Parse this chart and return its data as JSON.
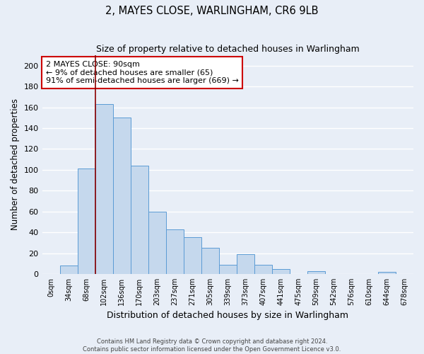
{
  "title1": "2, MAYES CLOSE, WARLINGHAM, CR6 9LB",
  "title2": "Size of property relative to detached houses in Warlingham",
  "xlabel": "Distribution of detached houses by size in Warlingham",
  "ylabel": "Number of detached properties",
  "bar_labels": [
    "0sqm",
    "34sqm",
    "68sqm",
    "102sqm",
    "136sqm",
    "170sqm",
    "203sqm",
    "237sqm",
    "271sqm",
    "305sqm",
    "339sqm",
    "373sqm",
    "407sqm",
    "441sqm",
    "475sqm",
    "509sqm",
    "542sqm",
    "576sqm",
    "610sqm",
    "644sqm",
    "678sqm"
  ],
  "bar_heights": [
    0,
    8,
    101,
    163,
    150,
    104,
    60,
    43,
    35,
    25,
    9,
    19,
    9,
    5,
    0,
    3,
    0,
    0,
    0,
    2,
    0
  ],
  "bar_color": "#c5d8ed",
  "bar_edge_color": "#5b9bd5",
  "ylim": [
    0,
    210
  ],
  "yticks": [
    0,
    20,
    40,
    60,
    80,
    100,
    120,
    140,
    160,
    180,
    200
  ],
  "annotation_title": "2 MAYES CLOSE: 90sqm",
  "annotation_line1": "← 9% of detached houses are smaller (65)",
  "annotation_line2": "91% of semi-detached houses are larger (669) →",
  "vline_x_index": 2.5,
  "footer1": "Contains HM Land Registry data © Crown copyright and database right 2024.",
  "footer2": "Contains public sector information licensed under the Open Government Licence v3.0.",
  "background_color": "#e8eef7",
  "grid_color": "#d0dae8"
}
